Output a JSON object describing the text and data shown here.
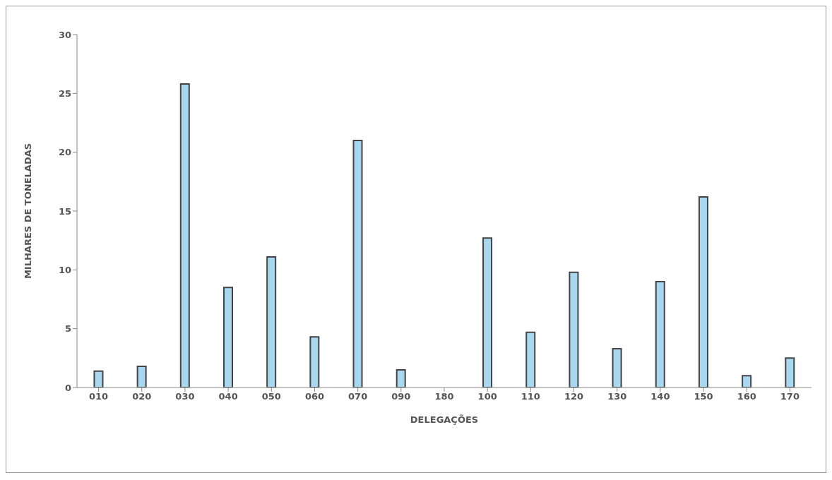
{
  "chart_data": {
    "type": "bar",
    "xlabel": "DELEGAÇÕES",
    "ylabel": "MILHARES DE TONELADAS",
    "categories": [
      "010",
      "020",
      "030",
      "040",
      "050",
      "060",
      "070",
      "090",
      "180",
      "100",
      "110",
      "120",
      "130",
      "140",
      "150",
      "160",
      "170"
    ],
    "values": [
      1.4,
      1.8,
      25.8,
      8.5,
      11.1,
      4.3,
      21.0,
      1.5,
      null,
      12.7,
      4.7,
      9.8,
      3.3,
      9.0,
      16.2,
      1.0,
      2.5
    ],
    "color": "#a8d8f0",
    "ylim": [
      0,
      30
    ],
    "yticks": [
      0,
      5,
      10,
      15,
      20,
      25,
      30
    ],
    "grid": false,
    "legend": false
  }
}
